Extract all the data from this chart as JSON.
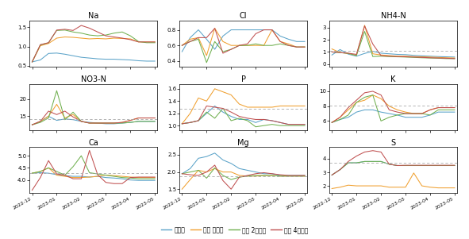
{
  "colors": [
    "#5ba3c9",
    "#f0a030",
    "#70b050",
    "#c05050"
  ],
  "legend_labels": [
    "비순환",
    "순환 무보정",
    "순환 2주보정",
    "순환 4주보정"
  ],
  "x_tick_labels": [
    "2022-12",
    "2023-01",
    "2023-02",
    "2023-03",
    "2023-04",
    "2023-05"
  ],
  "subplots": [
    {
      "title": "Na",
      "ylim": [
        0.48,
        1.68
      ],
      "yticks": [
        0.5,
        1.0,
        1.5
      ],
      "hline": null,
      "series": [
        [
          0.6,
          0.65,
          0.82,
          0.83,
          0.8,
          0.76,
          0.72,
          0.7,
          0.68,
          0.67,
          0.67,
          0.66,
          0.65,
          0.63,
          0.62,
          0.62
        ],
        [
          0.6,
          1.02,
          1.08,
          1.22,
          1.25,
          1.24,
          1.22,
          1.2,
          1.21,
          1.2,
          1.22,
          1.21,
          1.2,
          1.12,
          1.12,
          1.12
        ],
        [
          0.6,
          1.04,
          1.1,
          1.42,
          1.43,
          1.38,
          1.35,
          1.3,
          1.28,
          1.3,
          1.35,
          1.38,
          1.28,
          1.13,
          1.1,
          1.1
        ],
        [
          0.6,
          1.05,
          1.1,
          1.43,
          1.45,
          1.42,
          1.55,
          1.48,
          1.38,
          1.28,
          1.25,
          1.22,
          1.18,
          1.12,
          1.12,
          1.12
        ]
      ]
    },
    {
      "title": "Cl",
      "ylim": [
        0.33,
        0.92
      ],
      "yticks": [
        0.4,
        0.6,
        0.8
      ],
      "hline": null,
      "series": [
        [
          0.52,
          0.7,
          0.8,
          0.68,
          0.55,
          0.72,
          0.8,
          0.8,
          0.8,
          0.8,
          0.8,
          0.8,
          0.72,
          0.68,
          0.65,
          0.65
        ],
        [
          0.6,
          0.68,
          0.7,
          0.47,
          0.82,
          0.65,
          0.6,
          0.6,
          0.6,
          0.6,
          0.6,
          0.8,
          0.65,
          0.62,
          0.58,
          0.58
        ],
        [
          0.6,
          0.65,
          0.68,
          0.38,
          0.65,
          0.52,
          0.55,
          0.6,
          0.6,
          0.62,
          0.6,
          0.6,
          0.62,
          0.6,
          0.58,
          0.58
        ],
        [
          0.6,
          0.65,
          0.7,
          0.7,
          0.82,
          0.5,
          0.55,
          0.6,
          0.62,
          0.75,
          0.8,
          0.8,
          0.65,
          0.6,
          0.58,
          0.58
        ]
      ]
    },
    {
      "title": "NH4-N",
      "ylim": [
        -0.2,
        3.6
      ],
      "yticks": [
        0,
        1,
        2,
        3
      ],
      "hline": 1.1,
      "series": [
        [
          0.75,
          1.2,
          0.82,
          0.65,
          0.88,
          1.05,
          0.9,
          0.85,
          0.8,
          0.78,
          0.72,
          0.68,
          0.65,
          0.62,
          0.6,
          0.58
        ],
        [
          1.25,
          0.95,
          0.88,
          0.72,
          3.2,
          0.85,
          0.75,
          0.7,
          0.65,
          0.65,
          0.62,
          0.6,
          0.58,
          0.55,
          0.52,
          0.5
        ],
        [
          1.0,
          0.95,
          0.88,
          0.7,
          2.7,
          0.62,
          0.65,
          0.62,
          0.6,
          0.58,
          0.55,
          0.52,
          0.5,
          0.48,
          0.45,
          0.45
        ],
        [
          1.0,
          0.95,
          0.9,
          0.8,
          3.15,
          1.65,
          0.7,
          0.65,
          0.62,
          0.6,
          0.58,
          0.55,
          0.52,
          0.5,
          0.48,
          0.45
        ]
      ]
    },
    {
      "title": "NO3-N",
      "ylim": [
        11.0,
        24.5
      ],
      "yticks": [
        15,
        20
      ],
      "hline": 14.2,
      "series": [
        [
          12.5,
          13.5,
          15.0,
          13.8,
          14.2,
          14.0,
          13.5,
          13.2,
          13.0,
          12.8,
          12.8,
          13.0,
          13.2,
          13.5,
          13.5,
          13.5
        ],
        [
          12.5,
          13.5,
          15.0,
          18.5,
          14.5,
          15.5,
          13.5,
          13.0,
          13.0,
          13.0,
          13.0,
          13.2,
          13.8,
          14.5,
          14.5,
          14.5
        ],
        [
          12.5,
          13.2,
          14.5,
          22.5,
          14.0,
          16.2,
          13.5,
          13.0,
          13.0,
          13.0,
          13.0,
          13.0,
          13.2,
          13.5,
          13.5,
          13.5
        ],
        [
          12.5,
          13.5,
          16.5,
          15.5,
          16.5,
          14.8,
          13.5,
          13.0,
          13.0,
          13.0,
          13.0,
          13.2,
          13.8,
          14.5,
          14.5,
          14.5
        ]
      ]
    },
    {
      "title": "P",
      "ylim": [
        0.93,
        1.68
      ],
      "yticks": [
        1.0,
        1.2,
        1.4,
        1.6
      ],
      "hline": 1.28,
      "series": [
        [
          1.03,
          1.05,
          1.08,
          1.2,
          1.32,
          1.22,
          1.15,
          1.1,
          1.1,
          1.05,
          1.1,
          1.08,
          1.05,
          1.02,
          1.02,
          1.02
        ],
        [
          1.03,
          1.2,
          1.45,
          1.4,
          1.6,
          1.55,
          1.5,
          1.35,
          1.3,
          1.3,
          1.3,
          1.3,
          1.32,
          1.32,
          1.32,
          1.32
        ],
        [
          1.03,
          1.05,
          1.08,
          1.22,
          1.12,
          1.28,
          1.08,
          1.12,
          1.08,
          0.98,
          1.0,
          1.02,
          1.0,
          1.0,
          1.0,
          1.0
        ],
        [
          1.03,
          1.05,
          1.08,
          1.32,
          1.3,
          1.28,
          1.22,
          1.15,
          1.12,
          1.1,
          1.1,
          1.08,
          1.05,
          1.02,
          1.02,
          1.02
        ]
      ]
    },
    {
      "title": "K",
      "ylim": [
        4.8,
        11.0
      ],
      "yticks": [
        6,
        8,
        10
      ],
      "hline": 8.1,
      "series": [
        [
          5.8,
          6.2,
          6.5,
          7.2,
          7.5,
          7.5,
          7.2,
          7.0,
          6.8,
          6.5,
          6.5,
          6.5,
          6.8,
          7.2,
          7.2,
          7.2
        ],
        [
          5.8,
          6.5,
          7.5,
          8.5,
          8.8,
          9.5,
          9.0,
          8.0,
          7.5,
          7.2,
          7.0,
          7.0,
          7.5,
          7.8,
          7.8,
          7.8
        ],
        [
          5.8,
          6.2,
          6.8,
          8.5,
          9.2,
          9.5,
          6.0,
          6.5,
          6.8,
          7.0,
          7.0,
          7.0,
          6.8,
          7.5,
          7.5,
          7.5
        ],
        [
          5.8,
          6.5,
          7.8,
          8.8,
          9.8,
          10.0,
          9.5,
          7.5,
          7.2,
          7.0,
          7.0,
          7.0,
          7.5,
          7.8,
          7.8,
          7.8
        ]
      ]
    },
    {
      "title": "Ca",
      "ylim": [
        3.45,
        5.35
      ],
      "yticks": [
        4.0,
        4.5,
        5.0
      ],
      "hline": 4.28,
      "series": [
        [
          4.28,
          4.3,
          4.28,
          4.22,
          4.18,
          4.15,
          4.15,
          4.12,
          4.15,
          4.1,
          4.08,
          4.05,
          4.0,
          3.98,
          3.98,
          3.98
        ],
        [
          4.28,
          4.35,
          4.5,
          4.2,
          4.15,
          4.1,
          4.1,
          4.12,
          4.15,
          4.2,
          4.18,
          4.15,
          4.12,
          4.1,
          4.1,
          4.1
        ],
        [
          4.28,
          4.35,
          4.5,
          4.35,
          4.2,
          4.55,
          5.0,
          4.3,
          4.25,
          4.2,
          4.15,
          4.1,
          4.08,
          4.05,
          4.05,
          4.05
        ],
        [
          3.58,
          4.1,
          4.8,
          4.25,
          4.2,
          4.05,
          4.05,
          5.22,
          4.22,
          3.9,
          3.85,
          3.85,
          4.1,
          4.12,
          4.12,
          4.12
        ]
      ]
    },
    {
      "title": "Mg",
      "ylim": [
        1.38,
        2.72
      ],
      "yticks": [
        1.5,
        2.0,
        2.5
      ],
      "hline": 1.88,
      "series": [
        [
          1.95,
          2.1,
          2.4,
          2.45,
          2.55,
          2.35,
          2.25,
          2.1,
          2.05,
          2.0,
          1.95,
          1.95,
          1.9,
          1.9,
          1.9,
          1.9
        ],
        [
          1.5,
          1.78,
          2.05,
          2.0,
          2.1,
          2.0,
          2.0,
          1.9,
          1.88,
          1.88,
          1.9,
          1.9,
          1.88,
          1.88,
          1.88,
          1.88
        ],
        [
          1.95,
          2.0,
          2.05,
          1.82,
          2.12,
          1.9,
          1.78,
          1.85,
          1.88,
          1.9,
          1.9,
          1.9,
          1.88,
          1.88,
          1.88,
          1.88
        ],
        [
          1.95,
          1.92,
          1.9,
          2.0,
          2.2,
          1.75,
          1.5,
          1.85,
          1.9,
          1.95,
          1.98,
          1.95,
          1.92,
          1.9,
          1.9,
          1.9
        ]
      ]
    },
    {
      "title": "S",
      "ylim": [
        1.45,
        4.85
      ],
      "yticks": [
        2,
        3,
        4
      ],
      "hline": 3.68,
      "series": [
        [
          2.8,
          3.2,
          3.7,
          3.7,
          3.8,
          3.8,
          3.8,
          3.6,
          3.5,
          3.5,
          3.5,
          3.5,
          3.5,
          3.5,
          3.5,
          3.5
        ],
        [
          1.8,
          1.9,
          2.05,
          2.0,
          2.0,
          2.0,
          2.0,
          1.9,
          1.9,
          1.9,
          2.95,
          2.0,
          1.9,
          1.85,
          1.85,
          1.85
        ],
        [
          2.8,
          3.2,
          3.7,
          3.7,
          3.8,
          3.8,
          3.8,
          3.6,
          3.5,
          3.5,
          3.5,
          3.5,
          3.5,
          3.5,
          3.5,
          3.5
        ],
        [
          2.8,
          3.2,
          3.8,
          4.2,
          4.5,
          4.6,
          4.5,
          3.6,
          3.5,
          3.52,
          3.52,
          3.52,
          3.52,
          3.52,
          3.52,
          3.52
        ]
      ]
    }
  ]
}
